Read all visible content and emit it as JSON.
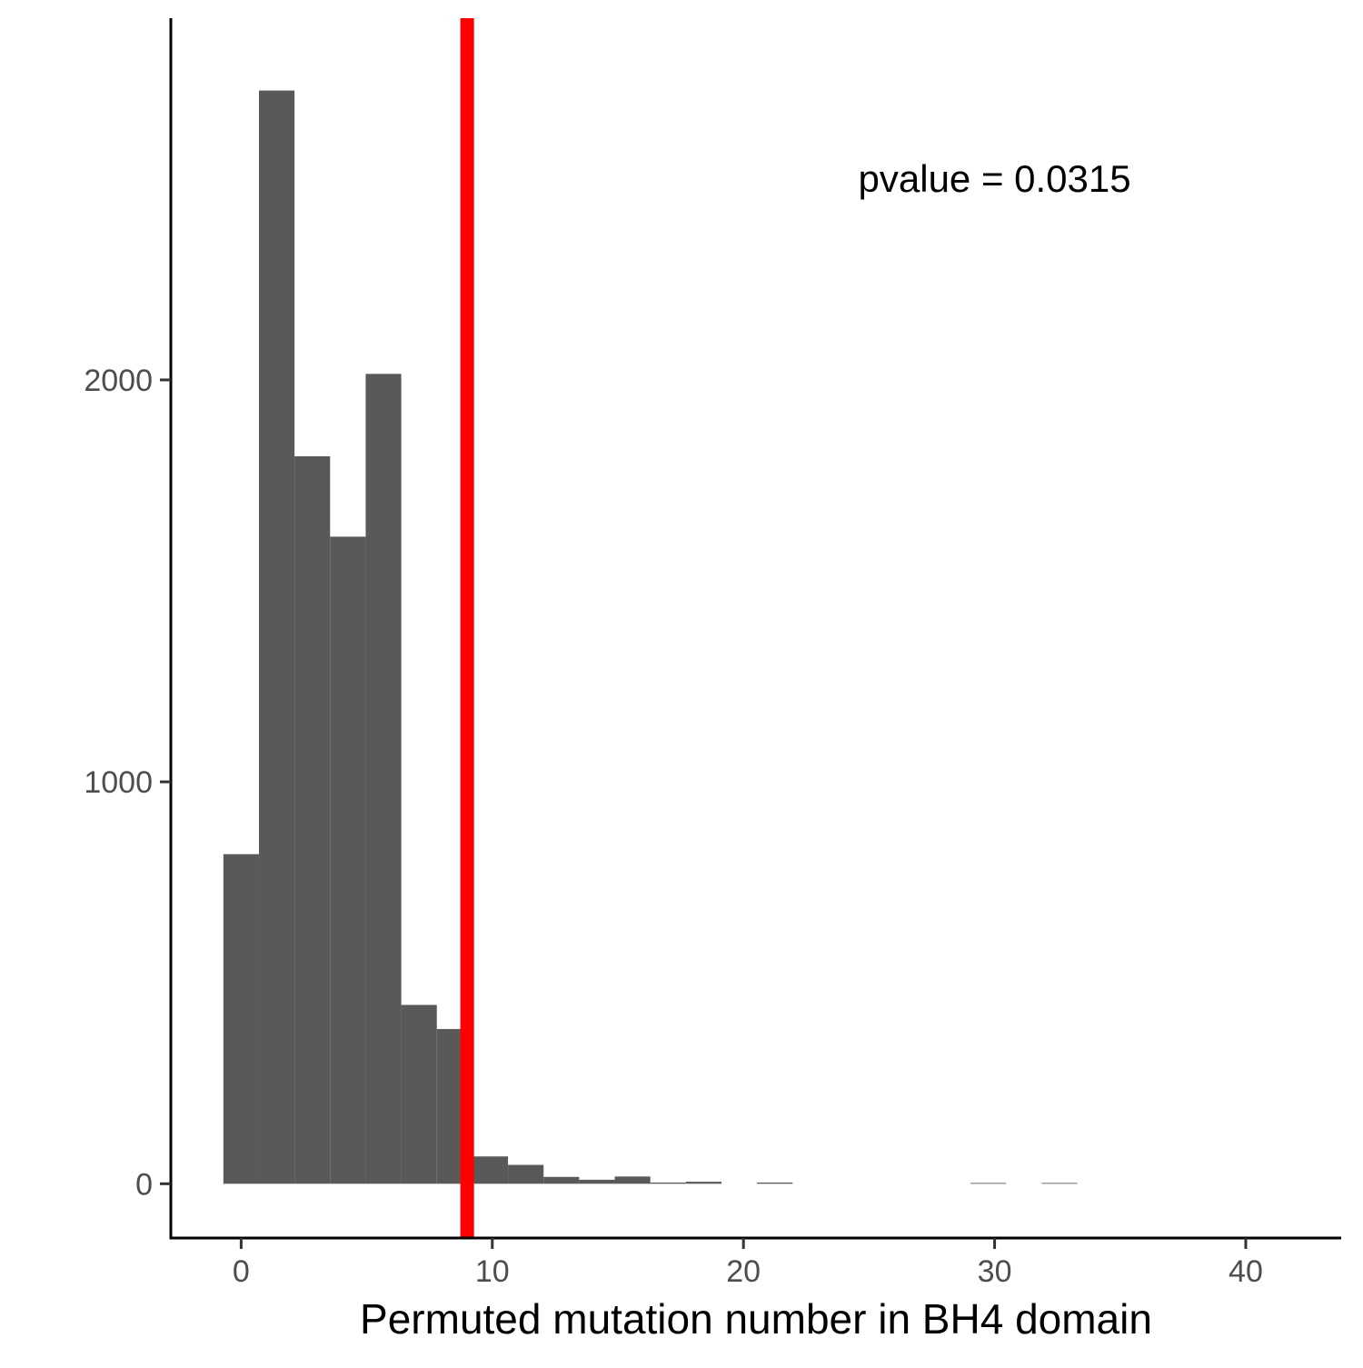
{
  "chart_data": {
    "type": "bar",
    "subtype": "histogram",
    "title": "",
    "xlabel": "Permuted mutation number in BH4 domain",
    "ylabel": "",
    "xlim": [
      -2.8,
      43.8
    ],
    "ylim": [
      -135,
      2900
    ],
    "x_ticks": [
      0,
      10,
      20,
      30,
      40
    ],
    "x_tick_labels": [
      "0",
      "10",
      "20",
      "30",
      "40"
    ],
    "y_ticks": [
      0,
      1000,
      2000
    ],
    "y_tick_labels": [
      "0",
      "1000",
      "2000"
    ],
    "bin_width": 1.4167,
    "bin_starts": [
      -0.7083,
      0.7083,
      2.125,
      3.5417,
      4.9583,
      6.375,
      7.7917,
      9.2083,
      10.625,
      12.0417,
      13.4583,
      14.875,
      16.2917,
      17.7083,
      19.125,
      20.5417,
      21.9583,
      23.375,
      24.7917,
      26.2083,
      27.625,
      29.0417,
      30.4583,
      31.875,
      33.2917
    ],
    "values": [
      820,
      2720,
      1810,
      1610,
      2015,
      445,
      385,
      68,
      47,
      17,
      10,
      18,
      3,
      5,
      0,
      3,
      0,
      0,
      0,
      0,
      0,
      2,
      0,
      2,
      0
    ],
    "bar_color": "#595959",
    "reference_line": {
      "x": 9,
      "color": "#ff0000"
    },
    "annotation": {
      "text": "pvalue =  0.0315",
      "x": 30,
      "y": 2500
    },
    "grid": false,
    "legend": "none"
  }
}
